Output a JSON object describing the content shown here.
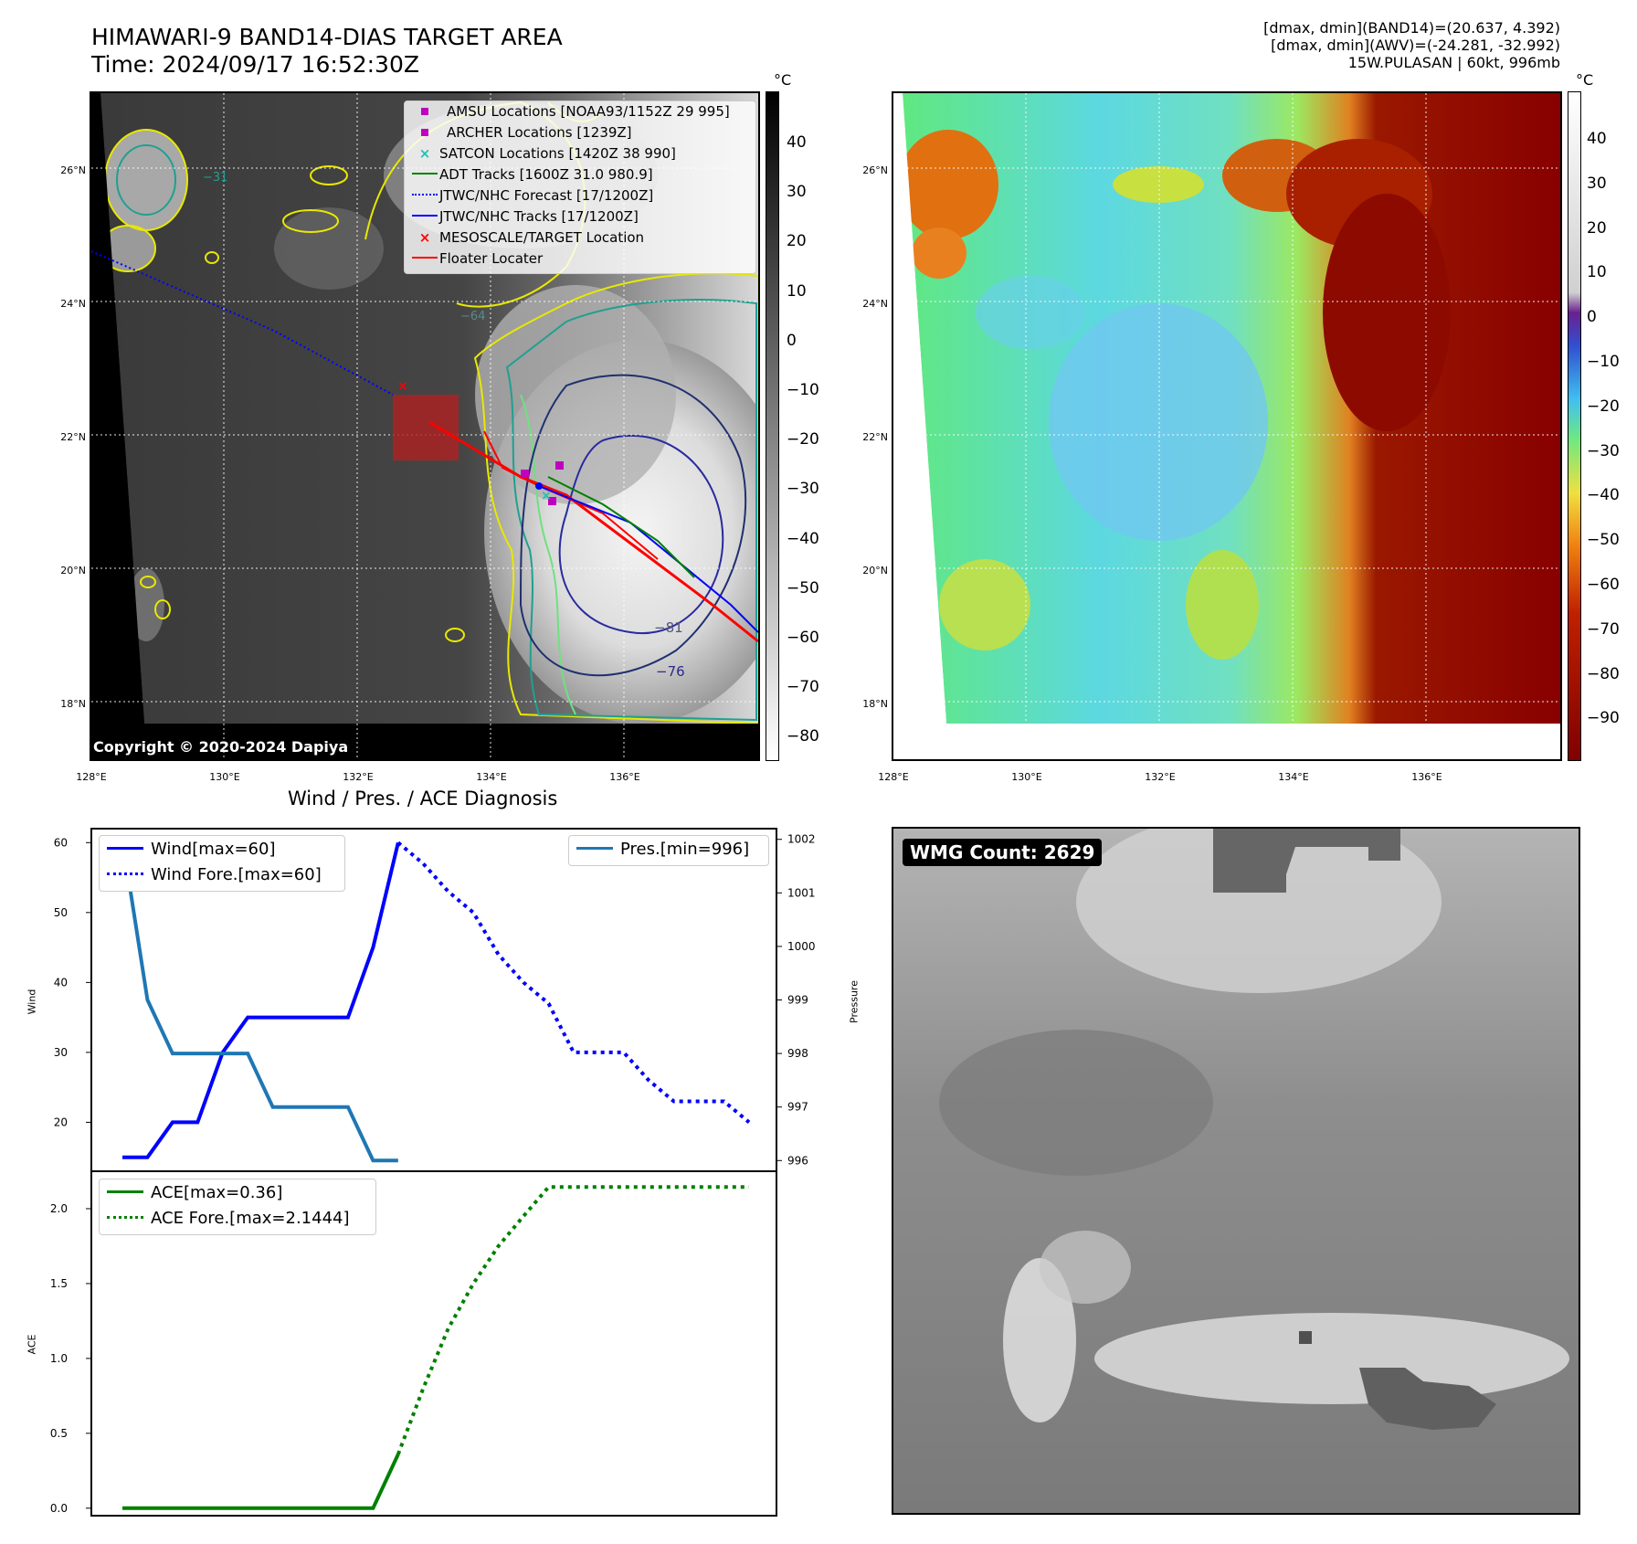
{
  "header": {
    "title_line1": "HIMAWARI-9 BAND14-DIAS TARGET AREA",
    "title_line2": "Time: 2024/09/17 16:52:30Z",
    "right_line1": "[dmax, dmin](BAND14)=(20.637, 4.392)",
    "right_line2": "[dmax, dmin](AWV)=(-24.281, -32.992)",
    "right_line3": "15W.PULASAN | 60kt, 996mb"
  },
  "maps": {
    "lat_labels": [
      "26°N",
      "24°N",
      "22°N",
      "20°N",
      "18°N"
    ],
    "lon_labels": [
      "128°E",
      "130°E",
      "132°E",
      "134°E",
      "136°E"
    ],
    "copyright": "Copyright © 2020-2024 Dapiya",
    "unit": "°C",
    "left_colorbar_ticks": [
      "40",
      "30",
      "20",
      "10",
      "0",
      "−10",
      "−20",
      "−30",
      "−40",
      "−50",
      "−60",
      "−70",
      "−80"
    ],
    "right_colorbar_ticks": [
      "40",
      "30",
      "20",
      "10",
      "0",
      "−10",
      "−20",
      "−30",
      "−40",
      "−50",
      "−60",
      "−70",
      "−80",
      "−90"
    ],
    "contour_labels": [
      "−31",
      "−64",
      "−76",
      "−81"
    ],
    "legend": [
      {
        "label": "AMSU Locations [NOAA93/1152Z 29 995]",
        "symbol": "square",
        "color": "#c000c0"
      },
      {
        "label": "ARCHER Locations [1239Z]",
        "symbol": "square",
        "color": "#c000c0"
      },
      {
        "label": "SATCON Locations [1420Z 38 990]",
        "symbol": "x",
        "color": "#20c0b0"
      },
      {
        "label": "ADT Tracks [1600Z 31.0 980.9]",
        "symbol": "line",
        "color": "#008000"
      },
      {
        "label": "JTWC/NHC Forecast [17/1200Z]",
        "symbol": "dotted",
        "color": "#0000ff"
      },
      {
        "label": "JTWC/NHC Tracks [17/1200Z]",
        "symbol": "line-dot",
        "color": "#0000ff"
      },
      {
        "label": "MESOSCALE/TARGET Location",
        "symbol": "x",
        "color": "#ff0000"
      },
      {
        "label": "Floater Locater",
        "symbol": "line",
        "color": "#ff0000"
      }
    ]
  },
  "diagnosis": {
    "title": "Wind / Pres. / ACE Diagnosis",
    "wind_ylabel": "Wind",
    "pres_ylabel": "Pressure",
    "ace_ylabel": "ACE",
    "legend_wind": "Wind[max=60]",
    "legend_wind_fore": "Wind Fore.[max=60]",
    "legend_pres": "Pres.[min=996]",
    "legend_ace": "ACE[max=0.36]",
    "legend_ace_fore": "ACE Fore.[max=2.1444]"
  },
  "wmg": {
    "label": "WMG Count: 2629"
  },
  "chart_data": [
    {
      "type": "line",
      "title": "Wind / Pres. / ACE Diagnosis",
      "ylabel": "Wind",
      "ylim": [
        13,
        62
      ],
      "y_ticks": [
        20,
        30,
        40,
        50,
        60
      ],
      "series": [
        {
          "name": "Wind[max=60]",
          "style": "solid",
          "color": "#0000ff",
          "x": [
            0,
            1,
            2,
            3,
            4,
            5,
            6,
            7,
            8,
            9,
            10,
            11
          ],
          "values": [
            15,
            15,
            20,
            20,
            30,
            35,
            35,
            35,
            35,
            35,
            45,
            60
          ]
        },
        {
          "name": "Wind Fore.[max=60]",
          "style": "dotted",
          "color": "#0000ff",
          "x": [
            11,
            12,
            13,
            14,
            15,
            16,
            17,
            18,
            19,
            20,
            21,
            22,
            23,
            24,
            25
          ],
          "values": [
            60,
            57,
            53,
            50,
            44,
            40,
            37,
            30,
            30,
            30,
            26,
            23,
            23,
            23,
            20
          ]
        }
      ]
    },
    {
      "type": "line",
      "ylabel": "Pressure",
      "ylim": [
        995.8,
        1002.2
      ],
      "y_ticks": [
        996,
        997,
        998,
        999,
        1000,
        1001,
        1002
      ],
      "series": [
        {
          "name": "Pres.[min=996]",
          "style": "solid",
          "color": "#1f77b4",
          "x": [
            0,
            1,
            2,
            3,
            4,
            5,
            6,
            7,
            8,
            9,
            10,
            11
          ],
          "values": [
            1002,
            999,
            998,
            998,
            998,
            998,
            997,
            997,
            997,
            997,
            996,
            996
          ]
        }
      ]
    },
    {
      "type": "line",
      "ylabel": "ACE",
      "ylim": [
        -0.05,
        2.25
      ],
      "y_ticks": [
        0.0,
        0.5,
        1.0,
        1.5,
        2.0
      ],
      "y_tick_labels": [
        "0.0",
        "0.5",
        "1.0",
        "1.5",
        "2.0"
      ],
      "series": [
        {
          "name": "ACE[max=0.36]",
          "style": "solid",
          "color": "#008000",
          "x": [
            0,
            10,
            11
          ],
          "values": [
            0,
            0,
            0.36
          ]
        },
        {
          "name": "ACE Fore.[max=2.1444]",
          "style": "dotted",
          "color": "#008000",
          "x": [
            11,
            12,
            13,
            14,
            15,
            16,
            17,
            18,
            19,
            20,
            21,
            22,
            23,
            24,
            25
          ],
          "values": [
            0.36,
            0.8,
            1.2,
            1.5,
            1.75,
            1.95,
            2.1444,
            2.1444,
            2.1444,
            2.1444,
            2.1444,
            2.1444,
            2.1444,
            2.1444,
            2.1444
          ]
        }
      ]
    }
  ]
}
